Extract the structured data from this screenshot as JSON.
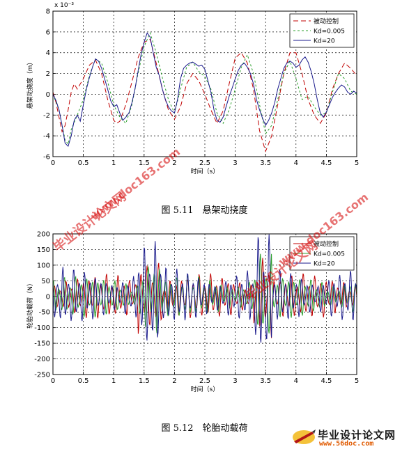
{
  "watermark_text": "毕业设计论文网",
  "watermark_url": "www.doc163.com",
  "logo": {
    "text": "毕业设计论文网",
    "url": "www.56doc.com"
  },
  "chart_data": [
    {
      "type": "line",
      "caption": "图 5.11　悬架动挠度",
      "xlabel": "时间（s）",
      "ylabel": "悬架动挠度（m）",
      "y_exponent": "x 10⁻³",
      "xlim": [
        0,
        5
      ],
      "ylim": [
        -6,
        8
      ],
      "xticks": [
        "0",
        "0.5",
        "1",
        "1.5",
        "2",
        "2.5",
        "3",
        "3.5",
        "4",
        "4.5",
        "5"
      ],
      "yticks": [
        "-6",
        "-4",
        "-2",
        "0",
        "2",
        "4",
        "6",
        "8"
      ],
      "grid": true,
      "legend_position": "top-right",
      "series": [
        {
          "name": "被动控制",
          "color": "#c00000",
          "dash": "7,4",
          "x": [
            0,
            0.05,
            0.1,
            0.15,
            0.2,
            0.25,
            0.3,
            0.35,
            0.4,
            0.5,
            0.6,
            0.7,
            0.8,
            0.9,
            1.0,
            1.05,
            1.1,
            1.2,
            1.3,
            1.4,
            1.5,
            1.6,
            1.7,
            1.8,
            1.9,
            2.0,
            2.1,
            2.2,
            2.3,
            2.4,
            2.5,
            2.6,
            2.7,
            2.8,
            2.9,
            3.0,
            3.1,
            3.2,
            3.3,
            3.4,
            3.5,
            3.6,
            3.7,
            3.8,
            3.9,
            4.0,
            4.1,
            4.2,
            4.3,
            4.4,
            4.5,
            4.6,
            4.7,
            4.8,
            4.9,
            5.0
          ],
          "y": [
            0.2,
            -0.8,
            -2.2,
            -3.6,
            -3.0,
            -1.5,
            0.2,
            1.0,
            0.5,
            1.5,
            2.8,
            3.3,
            2.0,
            -0.5,
            -2.5,
            -2.8,
            -2.6,
            -1.0,
            1.2,
            3.5,
            5.0,
            5.3,
            3.0,
            0.5,
            -1.5,
            -2.4,
            -1.2,
            1.0,
            2.0,
            1.3,
            0.0,
            -1.5,
            -2.8,
            -1.6,
            1.0,
            3.5,
            4.0,
            3.0,
            0.5,
            -3.5,
            -5.5,
            -4.0,
            -1.0,
            2.0,
            4.0,
            4.0,
            2.0,
            -0.5,
            -2.0,
            -2.8,
            -1.8,
            0.5,
            2.0,
            3.0,
            2.5,
            1.8
          ]
        },
        {
          "name": "Kd=0.005",
          "color": "#2ca02c",
          "dash": "3,3",
          "x": [
            0,
            0.1,
            0.2,
            0.25,
            0.3,
            0.4,
            0.5,
            0.6,
            0.7,
            0.8,
            0.9,
            1.0,
            1.1,
            1.2,
            1.3,
            1.4,
            1.5,
            1.6,
            1.7,
            1.8,
            1.9,
            2.0,
            2.1,
            2.2,
            2.3,
            2.4,
            2.5,
            2.6,
            2.7,
            2.8,
            2.9,
            3.0,
            3.1,
            3.2,
            3.3,
            3.4,
            3.5,
            3.6,
            3.7,
            3.8,
            3.9,
            4.0,
            4.1,
            4.2,
            4.3,
            4.4,
            4.5,
            4.6,
            4.7,
            4.8,
            4.9,
            5.0
          ],
          "y": [
            0,
            -1.5,
            -4.4,
            -4.8,
            -3.4,
            -2.0,
            -0.5,
            1.8,
            3.4,
            3.0,
            1.2,
            -1.0,
            -2.2,
            -2.8,
            -1.0,
            2.0,
            4.6,
            5.9,
            4.0,
            1.6,
            -0.5,
            -1.8,
            0.5,
            2.6,
            3.1,
            2.2,
            1.7,
            0.5,
            -1.8,
            -2.8,
            -1.5,
            0.5,
            2.6,
            3.8,
            2.0,
            -1.0,
            -3.8,
            -3.0,
            -0.5,
            2.0,
            3.2,
            1.5,
            -0.5,
            -0.2,
            -1.2,
            -2.0,
            -1.8,
            0.2,
            2.0,
            1.5,
            0.3,
            0.0
          ]
        },
        {
          "name": "Kd=20",
          "color": "#1a1a8c",
          "dash": "",
          "x": [
            0,
            0.05,
            0.1,
            0.15,
            0.2,
            0.25,
            0.3,
            0.35,
            0.4,
            0.45,
            0.5,
            0.55,
            0.6,
            0.65,
            0.7,
            0.75,
            0.8,
            0.85,
            0.9,
            0.95,
            1.0,
            1.05,
            1.1,
            1.15,
            1.2,
            1.25,
            1.3,
            1.35,
            1.4,
            1.45,
            1.5,
            1.55,
            1.6,
            1.65,
            1.7,
            1.75,
            1.8,
            1.85,
            1.9,
            1.95,
            2.0,
            2.05,
            2.1,
            2.15,
            2.2,
            2.25,
            2.3,
            2.35,
            2.4,
            2.45,
            2.5,
            2.55,
            2.6,
            2.65,
            2.7,
            2.75,
            2.8,
            2.85,
            2.9,
            2.95,
            3.0,
            3.05,
            3.1,
            3.15,
            3.2,
            3.25,
            3.3,
            3.35,
            3.4,
            3.45,
            3.5,
            3.55,
            3.6,
            3.65,
            3.7,
            3.75,
            3.8,
            3.85,
            3.9,
            3.95,
            4.0,
            4.05,
            4.1,
            4.15,
            4.2,
            4.25,
            4.3,
            4.35,
            4.4,
            4.45,
            4.5,
            4.55,
            4.6,
            4.65,
            4.7,
            4.75,
            4.8,
            4.85,
            4.9,
            4.95,
            5.0
          ],
          "y": [
            0,
            -0.6,
            -1.5,
            -3.0,
            -4.7,
            -5.0,
            -4.0,
            -2.5,
            -2.0,
            -2.6,
            -1.0,
            0.5,
            1.6,
            2.6,
            3.4,
            3.2,
            2.5,
            1.5,
            0.5,
            -0.6,
            -1.2,
            -1.0,
            -1.8,
            -2.5,
            -2.2,
            -1.8,
            -0.8,
            0.5,
            2.2,
            3.8,
            5.0,
            5.9,
            5.5,
            4.0,
            2.6,
            1.8,
            0.5,
            -0.5,
            -1.2,
            -1.6,
            -1.8,
            -0.5,
            1.5,
            2.5,
            2.8,
            3.0,
            3.1,
            2.9,
            2.7,
            2.8,
            2.4,
            1.3,
            0.2,
            -1.5,
            -2.5,
            -2.7,
            -2.2,
            -1.2,
            -0.2,
            0.6,
            1.5,
            2.3,
            2.8,
            3.0,
            2.6,
            2.0,
            1.0,
            -0.5,
            -1.5,
            -2.3,
            -3.0,
            -2.5,
            -1.8,
            -0.8,
            0.5,
            1.5,
            2.5,
            3.0,
            3.2,
            3.0,
            2.6,
            2.8,
            3.3,
            3.6,
            3.1,
            2.2,
            1.0,
            -0.5,
            -1.8,
            -2.2,
            -1.7,
            -1.0,
            -0.3,
            0.2,
            0.6,
            0.9,
            0.7,
            0.2,
            0.0,
            0.3,
            0.1
          ]
        }
      ]
    },
    {
      "type": "line",
      "caption": "图 5.12　轮胎动载荷",
      "xlabel": "时间（s）",
      "ylabel": "轮胎动载荷（N）",
      "xlim": [
        0,
        5
      ],
      "ylim": [
        -250,
        200
      ],
      "xticks": [
        "0",
        "0.5",
        "1",
        "1.5",
        "2",
        "2.5",
        "3",
        "3.5",
        "4",
        "4.5",
        "5"
      ],
      "yticks": [
        "-250",
        "-200",
        "-150",
        "-100",
        "-50",
        "0",
        "50",
        "100",
        "150",
        "200"
      ],
      "grid": true,
      "legend_position": "top-right",
      "series": [
        {
          "name": "被动控制",
          "color": "#c00000",
          "dash": "",
          "amp": 75
        },
        {
          "name": "Kd=0.005",
          "color": "#2ca02c",
          "dash": "",
          "amp": 70
        },
        {
          "name": "Kd=20",
          "color": "#1a1a8c",
          "dash": "",
          "amp": 95
        }
      ]
    }
  ]
}
